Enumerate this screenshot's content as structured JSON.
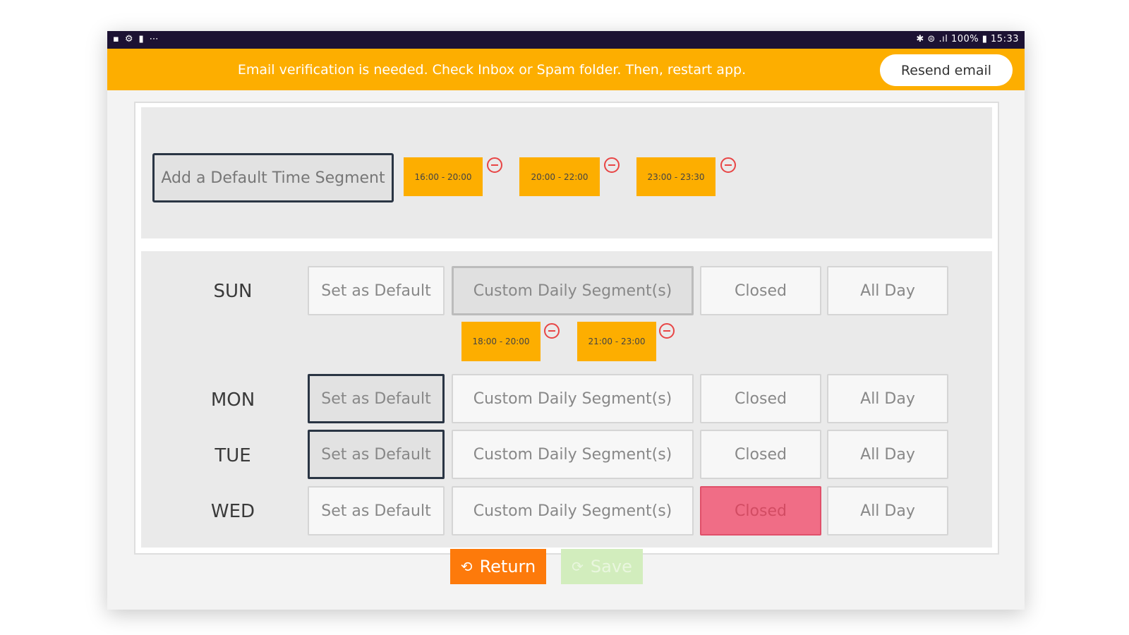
{
  "statusbar": {
    "left_icons": [
      "message-icon",
      "settings-icon",
      "notification-icon",
      "more-icon"
    ],
    "right_text": "✱ ⊜ .ıl 100% ▮ 15:33"
  },
  "banner": {
    "message": "Email verification is needed. Check Inbox or Spam folder. Then, restart app.",
    "resend_label": "Resend email",
    "color": "#fdae00"
  },
  "default_segments": {
    "add_label": "Add a Default Time Segment",
    "chips": [
      "16:00 - 20:00",
      "20:00 - 22:00",
      "23:00 - 23:30"
    ]
  },
  "option_labels": {
    "set_default": "Set as Default",
    "custom": "Custom Daily Segment(s)",
    "closed": "Closed",
    "all_day": "All Day"
  },
  "days": [
    {
      "name": "SUN",
      "selected": "custom",
      "segments": [
        "18:00 - 20:00",
        "21:00 - 23:00"
      ]
    },
    {
      "name": "MON",
      "selected": "set_default",
      "segments": []
    },
    {
      "name": "TUE",
      "selected": "set_default",
      "segments": []
    },
    {
      "name": "WED",
      "selected": "closed",
      "segments": []
    }
  ],
  "actions": {
    "return_label": "Return",
    "save_label": "Save",
    "return_color": "#fd7a0b",
    "save_color": "#d2edbd"
  }
}
